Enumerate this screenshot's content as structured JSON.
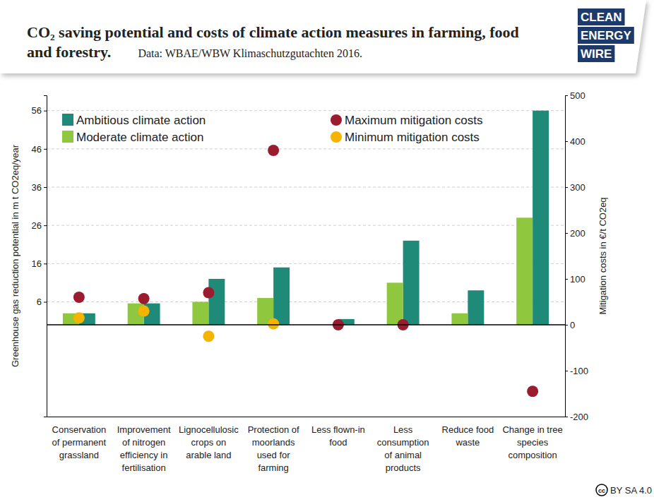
{
  "chart_data": {
    "type": "bar",
    "title": "CO₂ saving potential and costs of climate action measures in farming, food and forestry.",
    "subtitle": "Data: WBAE/WBW Klimaschutzgutachten 2016.",
    "y_label": "Greenhouse gas reduction potential in m t CO2eq/year",
    "y2_label": "Mitigation costs in €/t CO2eq",
    "categories": [
      "Conservation of permanent grassland",
      "Improvement of nitrogen efficiency in fertilisation",
      "Lignocellulosic crops on arable land",
      "Protection of moorlands used for farming",
      "Less flown-in food",
      "Less consumption of animal products",
      "Reduce food waste",
      "Change in tree species composition"
    ],
    "series": [
      {
        "name": "Ambitious climate action",
        "type": "bar",
        "color": "#1e8a77",
        "values": [
          3,
          5.6,
          12,
          15,
          1.5,
          22,
          9,
          56
        ]
      },
      {
        "name": "Moderate climate action",
        "type": "bar",
        "color": "#8fc73e",
        "values": [
          3,
          5.6,
          6,
          7,
          0,
          11,
          3,
          28
        ]
      },
      {
        "name": "Maximum mitigation costs",
        "type": "scatter",
        "marker": "circle",
        "axis": "y2",
        "color": "#9b1c2e",
        "values": [
          60,
          57,
          70,
          380,
          0,
          0,
          null,
          -145
        ]
      },
      {
        "name": "Minimum mitigation costs",
        "type": "scatter",
        "marker": "circle",
        "axis": "y2",
        "color": "#f5b400",
        "values": [
          15,
          30,
          -25,
          2,
          null,
          null,
          null,
          null
        ]
      }
    ],
    "ylim": [
      -24,
      60
    ],
    "yticks": [
      6,
      16,
      26,
      36,
      46,
      56
    ],
    "y2lim": [
      -200,
      500
    ],
    "y2ticks": [
      -200,
      -100,
      0,
      100,
      200,
      300,
      400,
      500
    ],
    "grid": true,
    "legend": "top"
  },
  "logo": [
    "CLEAN",
    "ENERGY",
    "WIRE"
  ],
  "license": {
    "icon": "cc",
    "text": "BY SA 4.0"
  }
}
